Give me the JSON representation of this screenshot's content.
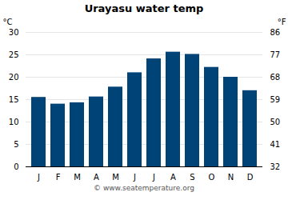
{
  "chart_data": {
    "type": "bar",
    "title": "Urayasu water temp",
    "categories": [
      "J",
      "F",
      "M",
      "A",
      "M",
      "J",
      "J",
      "A",
      "S",
      "O",
      "N",
      "D"
    ],
    "values": [
      15.5,
      14.0,
      14.3,
      15.6,
      17.8,
      21.0,
      24.1,
      25.6,
      25.1,
      22.2,
      20.0,
      17.0
    ],
    "color": "#004477",
    "ylabel": "°C",
    "y2label": "°F",
    "ylim": [
      0,
      30
    ],
    "yticks": [
      0,
      5,
      10,
      15,
      20,
      25,
      30
    ],
    "y2lim": [
      32,
      86
    ],
    "y2ticks": [
      32,
      41,
      50,
      59,
      68,
      77,
      86
    ],
    "grid": true,
    "caption": "© www.seatemperature.org"
  }
}
